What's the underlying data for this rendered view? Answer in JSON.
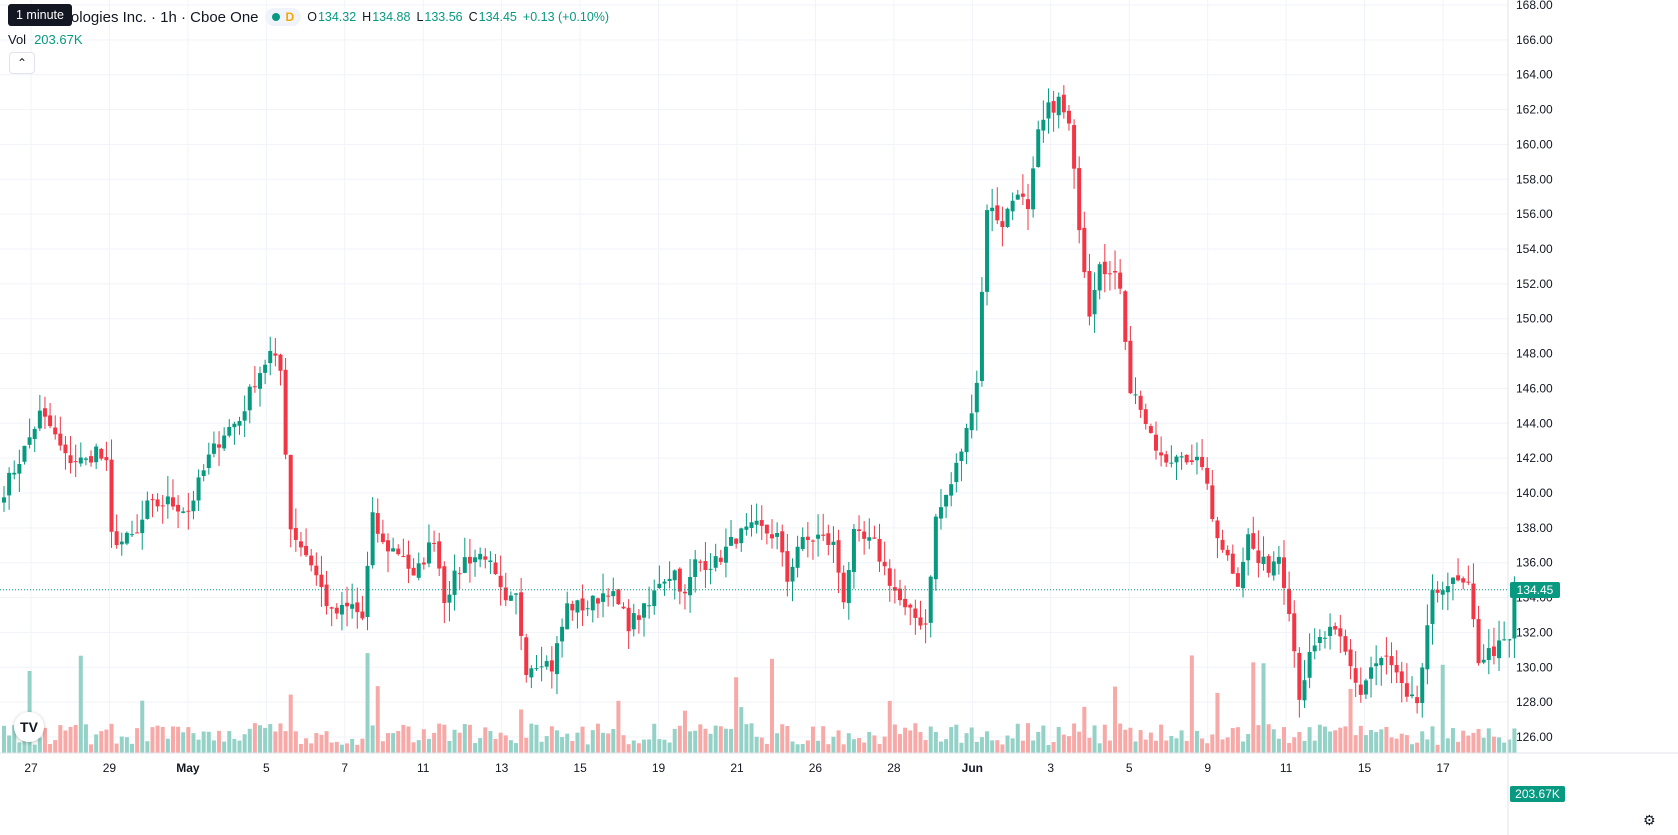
{
  "header": {
    "tooltip": "1 minute",
    "title": "r Technologies Inc. · 1h · Cboe One",
    "interval_badge": "D",
    "ohlc": {
      "o_label": "O",
      "o": "134.32",
      "h_label": "H",
      "h": "134.88",
      "l_label": "L",
      "l": "133.56",
      "c_label": "C",
      "c": "134.45",
      "change": "+0.13 (+0.10%)"
    },
    "volume_label": "Vol",
    "volume_value": "203.67K",
    "collapse_icon": "chevron-up-icon"
  },
  "price_badge": "134.45",
  "volume_badge": "203.67K",
  "logo_text": "TV",
  "colors": {
    "up": "#089981",
    "down": "#f23645",
    "up_vol": "#94d2c7",
    "down_vol": "#f7a9a7",
    "grid": "#f0f3fa",
    "axis_text": "#131722"
  },
  "chart_data": {
    "type": "candlestick",
    "ylim": [
      124.5,
      168.5
    ],
    "y_ticks": [
      "126.00",
      "128.00",
      "130.00",
      "132.00",
      "134.00",
      "136.00",
      "138.00",
      "140.00",
      "142.00",
      "144.00",
      "146.00",
      "148.00",
      "150.00",
      "152.00",
      "154.00",
      "156.00",
      "158.00",
      "160.00",
      "162.00",
      "164.00",
      "166.00",
      "168.00"
    ],
    "x_ticks": [
      {
        "label": "27",
        "bold": false
      },
      {
        "label": "29",
        "bold": false
      },
      {
        "label": "May",
        "bold": true
      },
      {
        "label": "5",
        "bold": false
      },
      {
        "label": "7",
        "bold": false
      },
      {
        "label": "11",
        "bold": false
      },
      {
        "label": "13",
        "bold": false
      },
      {
        "label": "15",
        "bold": false
      },
      {
        "label": "19",
        "bold": false
      },
      {
        "label": "21",
        "bold": false
      },
      {
        "label": "26",
        "bold": false
      },
      {
        "label": "28",
        "bold": false
      },
      {
        "label": "Jun",
        "bold": true
      },
      {
        "label": "3",
        "bold": false
      },
      {
        "label": "5",
        "bold": false
      },
      {
        "label": "9",
        "bold": false
      },
      {
        "label": "11",
        "bold": false
      },
      {
        "label": "15",
        "bold": false
      },
      {
        "label": "17",
        "bold": false
      }
    ],
    "last_price": 134.45,
    "waypoints": [
      [
        0,
        140.2
      ],
      [
        4,
        142.5
      ],
      [
        7,
        144.5
      ],
      [
        9,
        143.8
      ],
      [
        12,
        142.0
      ],
      [
        16,
        141.8
      ],
      [
        18,
        142.5
      ],
      [
        20,
        141.5
      ],
      [
        21,
        137.5
      ],
      [
        23,
        137.2
      ],
      [
        26,
        137.6
      ],
      [
        28,
        139.2
      ],
      [
        32,
        139.5
      ],
      [
        36,
        139.0
      ],
      [
        40,
        142.0
      ],
      [
        43,
        143.5
      ],
      [
        46,
        144.2
      ],
      [
        49,
        146.5
      ],
      [
        52,
        148.0
      ],
      [
        54,
        147.0
      ],
      [
        56,
        138.0
      ],
      [
        60,
        136.0
      ],
      [
        64,
        133.0
      ],
      [
        68,
        133.5
      ],
      [
        70,
        132.8
      ],
      [
        72,
        138.5
      ],
      [
        74,
        137.0
      ],
      [
        78,
        136.5
      ],
      [
        80,
        135.0
      ],
      [
        84,
        137.5
      ],
      [
        86,
        134.0
      ],
      [
        90,
        136.2
      ],
      [
        94,
        136.5
      ],
      [
        98,
        133.5
      ],
      [
        100,
        134.0
      ],
      [
        102,
        130.0
      ],
      [
        105,
        130.5
      ],
      [
        107,
        130.0
      ],
      [
        110,
        133.5
      ],
      [
        114,
        133.5
      ],
      [
        118,
        134.5
      ],
      [
        122,
        132.5
      ],
      [
        126,
        133.5
      ],
      [
        128,
        135.0
      ],
      [
        131,
        135.5
      ],
      [
        133,
        134.0
      ],
      [
        135,
        136.0
      ],
      [
        139,
        136.0
      ],
      [
        143,
        137.5
      ],
      [
        147,
        138.0
      ],
      [
        151,
        137.5
      ],
      [
        153,
        135.0
      ],
      [
        155,
        137.0
      ],
      [
        159,
        137.5
      ],
      [
        162,
        137.0
      ],
      [
        164,
        134.0
      ],
      [
        166,
        137.5
      ],
      [
        170,
        137.0
      ],
      [
        173,
        135.0
      ],
      [
        176,
        133.2
      ],
      [
        180,
        132.5
      ],
      [
        182,
        138.5
      ],
      [
        185,
        140.5
      ],
      [
        188,
        143.5
      ],
      [
        190,
        146.5
      ],
      [
        192,
        156.5
      ],
      [
        195,
        155.5
      ],
      [
        198,
        157.5
      ],
      [
        200,
        156.0
      ],
      [
        202,
        160.5
      ],
      [
        204,
        162.0
      ],
      [
        206,
        162.5
      ],
      [
        208,
        161.0
      ],
      [
        210,
        155.5
      ],
      [
        212,
        150.5
      ],
      [
        214,
        153.5
      ],
      [
        216,
        152.5
      ],
      [
        218,
        152.0
      ],
      [
        220,
        146.0
      ],
      [
        222,
        145.0
      ],
      [
        224,
        143.0
      ],
      [
        227,
        141.5
      ],
      [
        230,
        142.5
      ],
      [
        232,
        141.5
      ],
      [
        234,
        141.8
      ],
      [
        236,
        138.5
      ],
      [
        238,
        137.0
      ],
      [
        241,
        135.0
      ],
      [
        243,
        137.5
      ],
      [
        245,
        136.0
      ],
      [
        247,
        135.8
      ],
      [
        249,
        136.5
      ],
      [
        251,
        133.5
      ],
      [
        253,
        128.5
      ],
      [
        255,
        130.5
      ],
      [
        257,
        131.5
      ],
      [
        259,
        132.0
      ],
      [
        261,
        131.5
      ],
      [
        263,
        130.0
      ],
      [
        265,
        128.5
      ],
      [
        267,
        130.0
      ],
      [
        270,
        130.5
      ],
      [
        272,
        129.5
      ],
      [
        274,
        128.0
      ],
      [
        276,
        128.0
      ],
      [
        277,
        130.0
      ],
      [
        279,
        134.0
      ],
      [
        281,
        134.8
      ],
      [
        284,
        134.8
      ],
      [
        286,
        134.5
      ],
      [
        288,
        130.5
      ],
      [
        291,
        131.0
      ],
      [
        294,
        131.5
      ],
      [
        295,
        134.45
      ]
    ]
  }
}
